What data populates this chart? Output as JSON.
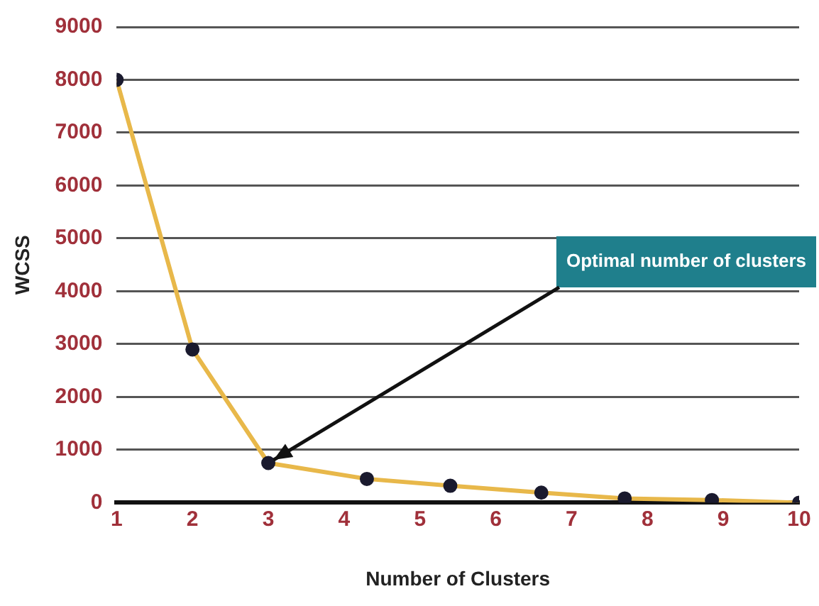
{
  "chart_data": {
    "type": "line",
    "xlabel": "Number of Clusters",
    "ylabel": "WCSS",
    "x": [
      1,
      2,
      3,
      4.3,
      5.4,
      6.6,
      7.7,
      8.85,
      10
    ],
    "series": [
      {
        "color": "#e8b84a",
        "values": [
          8000,
          2900,
          750,
          450,
          320,
          190,
          80,
          50,
          0
        ]
      }
    ],
    "xlim": [
      1,
      10
    ],
    "xticks": [
      1,
      2,
      3,
      4,
      5,
      6,
      7,
      8,
      9,
      10
    ],
    "ylim": [
      0,
      9000
    ],
    "yticks": [
      0,
      1000,
      2000,
      3000,
      4000,
      5000,
      6000,
      7000,
      8000,
      9000
    ],
    "grid": "y",
    "legend": false,
    "marker": "circle",
    "line_style": "solid",
    "annotations": [
      "Optimal number of clusters"
    ]
  }
}
